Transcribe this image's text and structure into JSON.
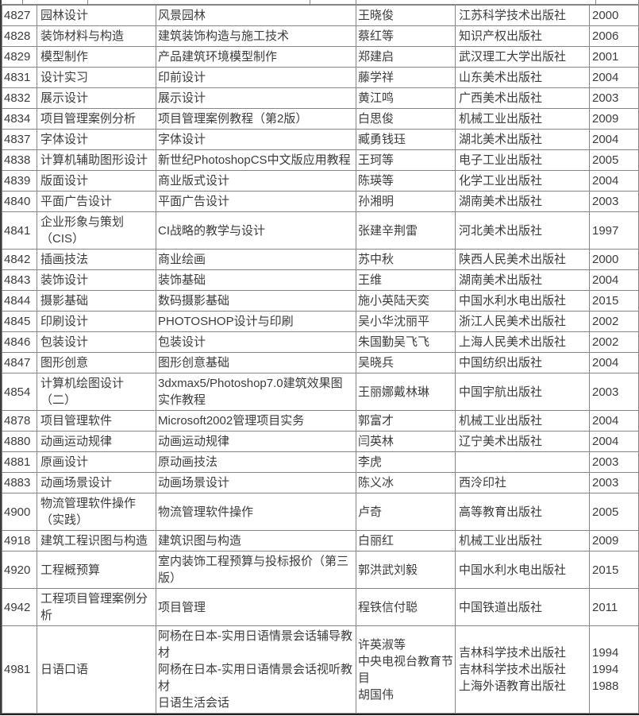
{
  "table": {
    "fields": [
      "id",
      "course",
      "title",
      "author",
      "publisher",
      "year"
    ],
    "rows": [
      {
        "id": "4827",
        "course": "园林设计",
        "title": "风景园林",
        "author": "王晓俊",
        "publisher": "江苏科学技术出版社",
        "year": "2000"
      },
      {
        "id": "4828",
        "course": "装饰材料与构造",
        "title": "建筑装饰构造与施工技术",
        "author": "蔡红等",
        "publisher": "知识产权出版社",
        "year": "2006"
      },
      {
        "id": "4829",
        "course": "模型制作",
        "title": "产品建筑环境模型制作",
        "author": "郑建启",
        "publisher": "武汉理工大学出版社",
        "year": "2001"
      },
      {
        "id": "4831",
        "course": "设计实习",
        "title": "印前设计",
        "author": "藤学祥",
        "publisher": "山东美术出版社",
        "year": "2004"
      },
      {
        "id": "4832",
        "course": "展示设计",
        "title": "展示设计",
        "author": "黄江鸣",
        "publisher": "广西美术出版社",
        "year": "2003"
      },
      {
        "id": "4834",
        "course": "项目管理案例分析",
        "title": "项目管理案例教程（第2版）",
        "author": "白思俊",
        "publisher": "机械工业出版社",
        "year": "2009"
      },
      {
        "id": "4837",
        "course": "字体设计",
        "title": "字体设计",
        "author": "臧勇钱珏",
        "publisher": "湖北美术出版社",
        "year": "2004"
      },
      {
        "id": "4838",
        "course": "计算机辅助图形设计",
        "title": "新世纪PhotoshopCS中文版应用教程",
        "author": "王珂等",
        "publisher": "电子工业出版社",
        "year": "2005"
      },
      {
        "id": "4839",
        "course": "版面设计",
        "title": "商业版式设计",
        "author": "陈瑛等",
        "publisher": "化学工业出版社",
        "year": "2004"
      },
      {
        "id": "4840",
        "course": "平面广告设计",
        "title": "平面广告设计",
        "author": "孙湘明",
        "publisher": "湖南美术出版社",
        "year": "2003"
      },
      {
        "id": "4841",
        "course": "企业形象与策划\n（CIS）",
        "title": "CI战略的教学与设计",
        "author": "张建辛荆雷",
        "publisher": "河北美术出版社",
        "year": "1997"
      },
      {
        "id": "4842",
        "course": "插画技法",
        "title": "商业绘画",
        "author": "苏中秋",
        "publisher": "陕西人民美术出版社",
        "year": "2000"
      },
      {
        "id": "4843",
        "course": "装饰设计",
        "title": "装饰基础",
        "author": "王维",
        "publisher": "湖南美术出版社",
        "year": "2004"
      },
      {
        "id": "4844",
        "course": "摄影基础",
        "title": "数码摄影基础",
        "author": "施小英陆天奕",
        "publisher": "中国水利水电出版社",
        "year": "2015"
      },
      {
        "id": "4845",
        "course": "印刷设计",
        "title": "PHOTOSHOP设计与印刷",
        "author": "吴小华沈丽平",
        "publisher": "浙江人民美术出版社",
        "year": "2002"
      },
      {
        "id": "4846",
        "course": "包装设计",
        "title": "包装设计",
        "author": "朱国勤吴飞飞",
        "publisher": "上海人民美术出版社",
        "year": "2002"
      },
      {
        "id": "4847",
        "course": "图形创意",
        "title": "图形创意基础",
        "author": "吴晓兵",
        "publisher": "中国纺织出版社",
        "year": "2004"
      },
      {
        "id": "4854",
        "course": "计算机绘图设计\n（二）",
        "title": "3dxmax5/Photoshop7.0建筑效果图\n实作教程",
        "author": "王丽娜戴林琳",
        "publisher": "中国宇航出版社",
        "year": "2003"
      },
      {
        "id": "4878",
        "course": "项目管理软件",
        "title": "Microsoft2002管理项目实务",
        "author": "郭富才",
        "publisher": "机械工业出版社",
        "year": "2004"
      },
      {
        "id": "4880",
        "course": "动画运动规律",
        "title": "动画运动规律",
        "author": "闫英林",
        "publisher": "辽宁美术出版社",
        "year": "2004"
      },
      {
        "id": "4881",
        "course": "原画设计",
        "title": "原动画技法",
        "author": "李虎",
        "publisher": "",
        "year": "2003"
      },
      {
        "id": "4883",
        "course": "动画场景设计",
        "title": "动画场景设计",
        "author": "陈义冰",
        "publisher": "西泠印社",
        "year": "2003"
      },
      {
        "id": "4900",
        "course": "物流管理软件操作\n（实践）",
        "title": "物流管理软件操作",
        "author": "卢奇",
        "publisher": "高等教育出版社",
        "year": "2005"
      },
      {
        "id": "4918",
        "course": "建筑工程识图与构造",
        "title": "建筑识图与构造",
        "author": "白丽红",
        "publisher": "机械工业出版社",
        "year": "2009"
      },
      {
        "id": "4920",
        "course": "工程概预算",
        "title": "室内装饰工程预算与投标报价（第三\n版）",
        "author": "郭洪武刘毅",
        "publisher": "中国水利水电出版社",
        "year": "2015"
      },
      {
        "id": "4942",
        "course": "工程项目管理案例分\n析",
        "title": "项目管理",
        "author": "程铁信付聪",
        "publisher": "中国铁道出版社",
        "year": "2011"
      },
      {
        "id": "4981",
        "course": "日语口语",
        "title": "阿杨在日本-实用日语情景会话辅导教\n材\n阿杨在日本-实用日语情景会话视听教\n材\n日语生活会话",
        "author": "许英淑等\n中央电视台教育节\n目\n胡国伟",
        "publisher": "吉林科学技术出版社\n吉林科学技术出版社\n上海外语教育出版社",
        "year": "1994\n1994\n1988"
      }
    ]
  },
  "colors": {
    "text": "#3c3c3c",
    "grid_border": "#858585",
    "outer_border": "#3b3b3b",
    "background": "#ffffff"
  }
}
